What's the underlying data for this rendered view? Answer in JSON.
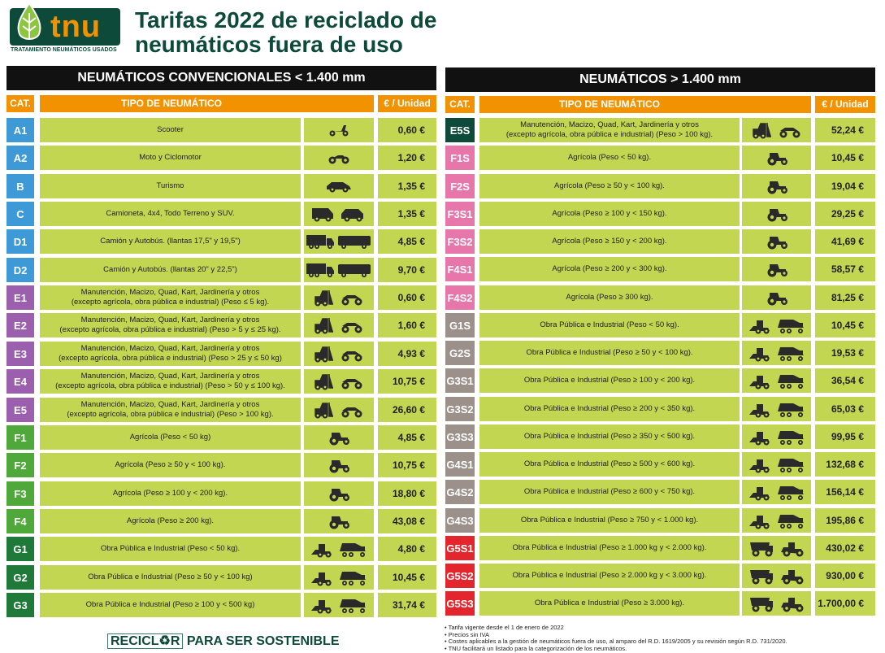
{
  "logo": {
    "text": "tnu",
    "subtitle": "TRATAMIENTO NEUMÁTICOS USADOS"
  },
  "title": {
    "line1": "Tarifas 2022 de reciclado de",
    "line2": "neumáticos fuera de uso"
  },
  "colors": {
    "orange": "#f39200",
    "row": "#c3d651",
    "dark_green": "#0d4a3a"
  },
  "left": {
    "heading": "NEUMÁTICOS CONVENCIONALES < 1.400 mm",
    "col_cat": "CAT.",
    "col_type": "TIPO DE NEUMÁTICO",
    "col_price": "€ / Unidad",
    "rows": [
      {
        "cat": "A1",
        "color": "#3d9ad6",
        "desc": "Scooter",
        "icon": "scooter",
        "price": "0,60 €"
      },
      {
        "cat": "A2",
        "color": "#3d9ad6",
        "desc": "Moto y Ciclomotor",
        "icon": "motorcycle",
        "price": "1,20 €"
      },
      {
        "cat": "B",
        "color": "#3d9ad6",
        "desc": "Turismo",
        "icon": "car",
        "price": "1,35 €"
      },
      {
        "cat": "C",
        "color": "#3d9ad6",
        "desc": "Camioneta, 4x4, Todo Terreno y SUV.",
        "icon": "van-suv",
        "price": "1,35 €"
      },
      {
        "cat": "D1",
        "color": "#3d9ad6",
        "desc": "Camión y Autobús. (llantas 17,5\" y 19,5\")",
        "icon": "truck-bus",
        "price": "4,85 €"
      },
      {
        "cat": "D2",
        "color": "#3d9ad6",
        "desc": "Camión y Autobús. (llantas 20\" y 22,5\")",
        "icon": "truck-bus",
        "price": "9,70 €"
      },
      {
        "cat": "E1",
        "color": "#9b5fae",
        "desc": "Manutención, Macizo, Quad, Kart, Jardinería y otros\n(excepto agrícola, obra pública e industrial)  (Peso ≤ 5 kg).",
        "icon": "forklift-quad",
        "price": "0,60 €"
      },
      {
        "cat": "E2",
        "color": "#9b5fae",
        "desc": "Manutención, Macizo, Quad, Kart, Jardinería y otros\n(excepto agrícola, obra pública e industrial) (Peso > 5 y ≤ 25 kg).",
        "icon": "forklift-quad",
        "price": "1,60 €"
      },
      {
        "cat": "E3",
        "color": "#9b5fae",
        "desc": "Manutención, Macizo, Quad, Kart, Jardinería y otros\n(excepto agrícola, obra pública e industrial) (Peso > 25 y ≤ 50 kg)",
        "icon": "forklift-quad",
        "price": "4,93 €"
      },
      {
        "cat": "E4",
        "color": "#9b5fae",
        "desc": "Manutención, Macizo, Quad, Kart, Jardinería y otros\n(excepto agrícola, obra pública e industrial) (Peso > 50 y ≤ 100 kg).",
        "icon": "forklift-quad",
        "price": "10,75 €"
      },
      {
        "cat": "E5",
        "color": "#9b5fae",
        "desc": "Manutención, Macizo, Quad, Kart, Jardinería y otros\n(excepto agrícola, obra pública e industrial) (Peso > 100 kg).",
        "icon": "forklift-quad",
        "price": "26,60 €"
      },
      {
        "cat": "F1",
        "color": "#4fa83a",
        "desc": "Agrícola (Peso < 50 kg)",
        "icon": "tractor",
        "price": "4,85 €"
      },
      {
        "cat": "F2",
        "color": "#4fa83a",
        "desc": "Agrícola (Peso ≥ 50 y < 100 kg).",
        "icon": "tractor",
        "price": "10,75 €"
      },
      {
        "cat": "F3",
        "color": "#4fa83a",
        "desc": "Agrícola (Peso ≥ 100 y < 200 kg).",
        "icon": "tractor",
        "price": "18,80 €"
      },
      {
        "cat": "F4",
        "color": "#4fa83a",
        "desc": "Agrícola (Peso ≥ 200 kg).",
        "icon": "tractor",
        "price": "43,08 €"
      },
      {
        "cat": "G1",
        "color": "#1f7a3a",
        "desc": "Obra Pública e Industrial (Peso < 50 kg).",
        "icon": "loader-mixer",
        "price": "4,80 €"
      },
      {
        "cat": "G2",
        "color": "#1f7a3a",
        "desc": "Obra Pública e Industrial (Peso ≥ 50 y < 100 kg)",
        "icon": "loader-mixer",
        "price": "10,45 €"
      },
      {
        "cat": "G3",
        "color": "#1f7a3a",
        "desc": "Obra Pública e Industrial (Peso ≥ 100 y < 500 kg)",
        "icon": "loader-mixer",
        "price": "31,74 €"
      }
    ]
  },
  "right": {
    "heading": "NEUMÁTICOS > 1.400 mm",
    "col_cat": "CAT.",
    "col_type": "TIPO DE NEUMÁTICO",
    "col_price": "€ / Unidad",
    "rows": [
      {
        "cat": "E5S",
        "color": "#0d4a3a",
        "desc": "Manutención, Macizo, Quad, Kart, Jardinería y otros\n(excepto agrícola, obra pública e industrial) (Peso > 100 kg).",
        "icon": "forklift-quad",
        "price": "52,24 €"
      },
      {
        "cat": "F1S",
        "color": "#e777ab",
        "desc": "Agrícola (Peso < 50 kg).",
        "icon": "tractor",
        "price": "10,45 €"
      },
      {
        "cat": "F2S",
        "color": "#e777ab",
        "desc": "Agrícola (Peso ≥ 50 y < 100 kg).",
        "icon": "tractor",
        "price": "19,04 €"
      },
      {
        "cat": "F3S1",
        "color": "#e777ab",
        "desc": "Agrícola (Peso ≥ 100 y < 150 kg).",
        "icon": "tractor",
        "price": "29,25 €"
      },
      {
        "cat": "F3S2",
        "color": "#e777ab",
        "desc": "Agrícola (Peso ≥ 150 y < 200 kg).",
        "icon": "tractor",
        "price": "41,69 €"
      },
      {
        "cat": "F4S1",
        "color": "#e777ab",
        "desc": "Agrícola (Peso ≥ 200 y < 300 kg).",
        "icon": "tractor",
        "price": "58,57 €"
      },
      {
        "cat": "F4S2",
        "color": "#e777ab",
        "desc": "Agrícola (Peso ≥ 300 kg).",
        "icon": "tractor",
        "price": "81,25 €"
      },
      {
        "cat": "G1S",
        "color": "#9b918a",
        "desc": "Obra Pública e Industrial (Peso < 50 kg).",
        "icon": "loader-mixer",
        "price": "10,45 €"
      },
      {
        "cat": "G2S",
        "color": "#9b918a",
        "desc": "Obra Pública e Industrial (Peso ≥ 50 y < 100 kg).",
        "icon": "loader-mixer",
        "price": "19,53 €"
      },
      {
        "cat": "G3S1",
        "color": "#9b918a",
        "desc": "Obra Pública e Industrial (Peso ≥ 100 y < 200 kg).",
        "icon": "loader-mixer",
        "price": "36,54 €"
      },
      {
        "cat": "G3S2",
        "color": "#9b918a",
        "desc": "Obra Pública e Industrial (Peso ≥ 200 y < 350 kg).",
        "icon": "loader-mixer",
        "price": "65,03 €"
      },
      {
        "cat": "G3S3",
        "color": "#9b918a",
        "desc": "Obra Pública e Industrial (Peso ≥ 350 y < 500 kg).",
        "icon": "loader-mixer",
        "price": "99,95 €"
      },
      {
        "cat": "G4S1",
        "color": "#9b918a",
        "desc": "Obra Pública e Industrial (Peso ≥ 500 y < 600 kg).",
        "icon": "loader-mixer",
        "price": "132,68 €"
      },
      {
        "cat": "G4S2",
        "color": "#9b918a",
        "desc": "Obra Pública e Industrial (Peso ≥ 600 y < 750 kg).",
        "icon": "loader-mixer",
        "price": "156,14 €"
      },
      {
        "cat": "G4S3",
        "color": "#9b918a",
        "desc": "Obra Pública e Industrial (Peso ≥ 750 y < 1.000 kg).",
        "icon": "loader-mixer",
        "price": "195,86 €"
      },
      {
        "cat": "G5S1",
        "color": "#e3262d",
        "desc": "Obra Pública e Industrial (Peso ≥ 1.000 kg y < 2.000 kg).",
        "icon": "dumper-loader",
        "price": "430,02 €"
      },
      {
        "cat": "G5S2",
        "color": "#e3262d",
        "desc": "Obra Pública e Industrial (Peso ≥ 2.000 kg y < 3.000 kg).",
        "icon": "dumper-loader",
        "price": "930,00 €"
      },
      {
        "cat": "G5S3",
        "color": "#e3262d",
        "desc": "Obra Pública e Industrial (Peso ≥ 3.000 kg).",
        "icon": "dumper-loader",
        "price": "1.700,00 €"
      }
    ]
  },
  "footer": {
    "slogan_box": "RECICL♻R",
    "slogan_rest": "PARA SER SOSTENIBLE",
    "notes": [
      "• Tarifa vigente desde el 1 de enero de 2022",
      "• Precios sin IVA",
      "• Costes aplicables a la gestión de neumáticos fuera de uso, al amparo del R.D. 1619/2005 y su revisión según R.D. 731/2020.",
      "• TNU facilitará un listado para la categorización de los neumáticos."
    ]
  }
}
